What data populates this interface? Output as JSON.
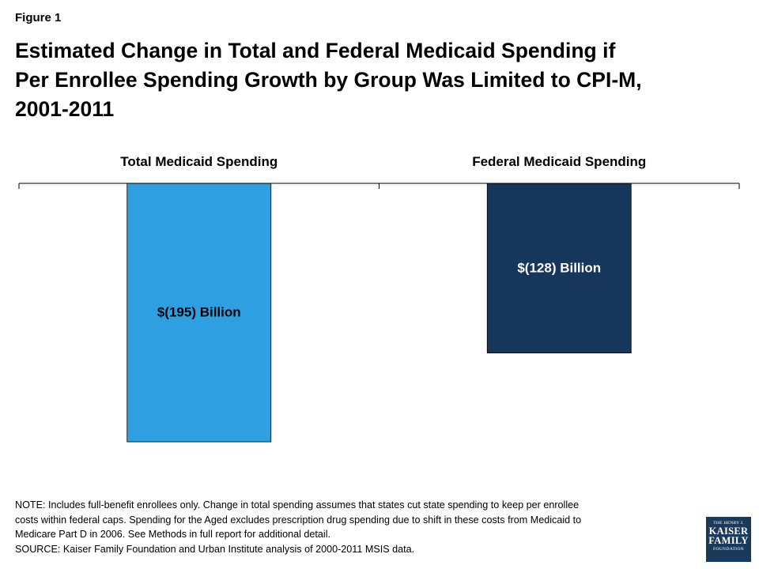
{
  "figure_label": "Figure 1",
  "title_lines": [
    "Estimated Change in Total and Federal Medicaid Spending if",
    "Per Enrollee Spending Growth by Group Was Limited to CPI-M,",
    "2001-2011"
  ],
  "chart_data": {
    "type": "bar",
    "categories": [
      "Total Medicaid Spending",
      "Federal Medicaid Spending"
    ],
    "values": [
      -195,
      -128
    ],
    "data_labels": [
      "$(195) Billion",
      "$(128) Billion"
    ],
    "colors": [
      "#2e9fe1",
      "#16365c"
    ],
    "ylim": [
      -220,
      0
    ],
    "title": "",
    "xlabel": "",
    "ylabel": "",
    "grid": false
  },
  "notes": [
    "NOTE: Includes full-benefit enrollees only. Change in total spending assumes that states cut state spending to keep per enrollee",
    "costs within federal caps. Spending for the Aged excludes prescription drug spending due to shift in these costs from Medicaid to",
    "Medicare Part D in 2006. See Methods in full report for additional detail.",
    "SOURCE: Kaiser Family Foundation and Urban Institute analysis of 2000-2011 MSIS data."
  ],
  "logo": {
    "line1": "THE HENRY J.",
    "line2": "KAISER",
    "line3": "FAMILY",
    "line4": "FOUNDATION"
  }
}
